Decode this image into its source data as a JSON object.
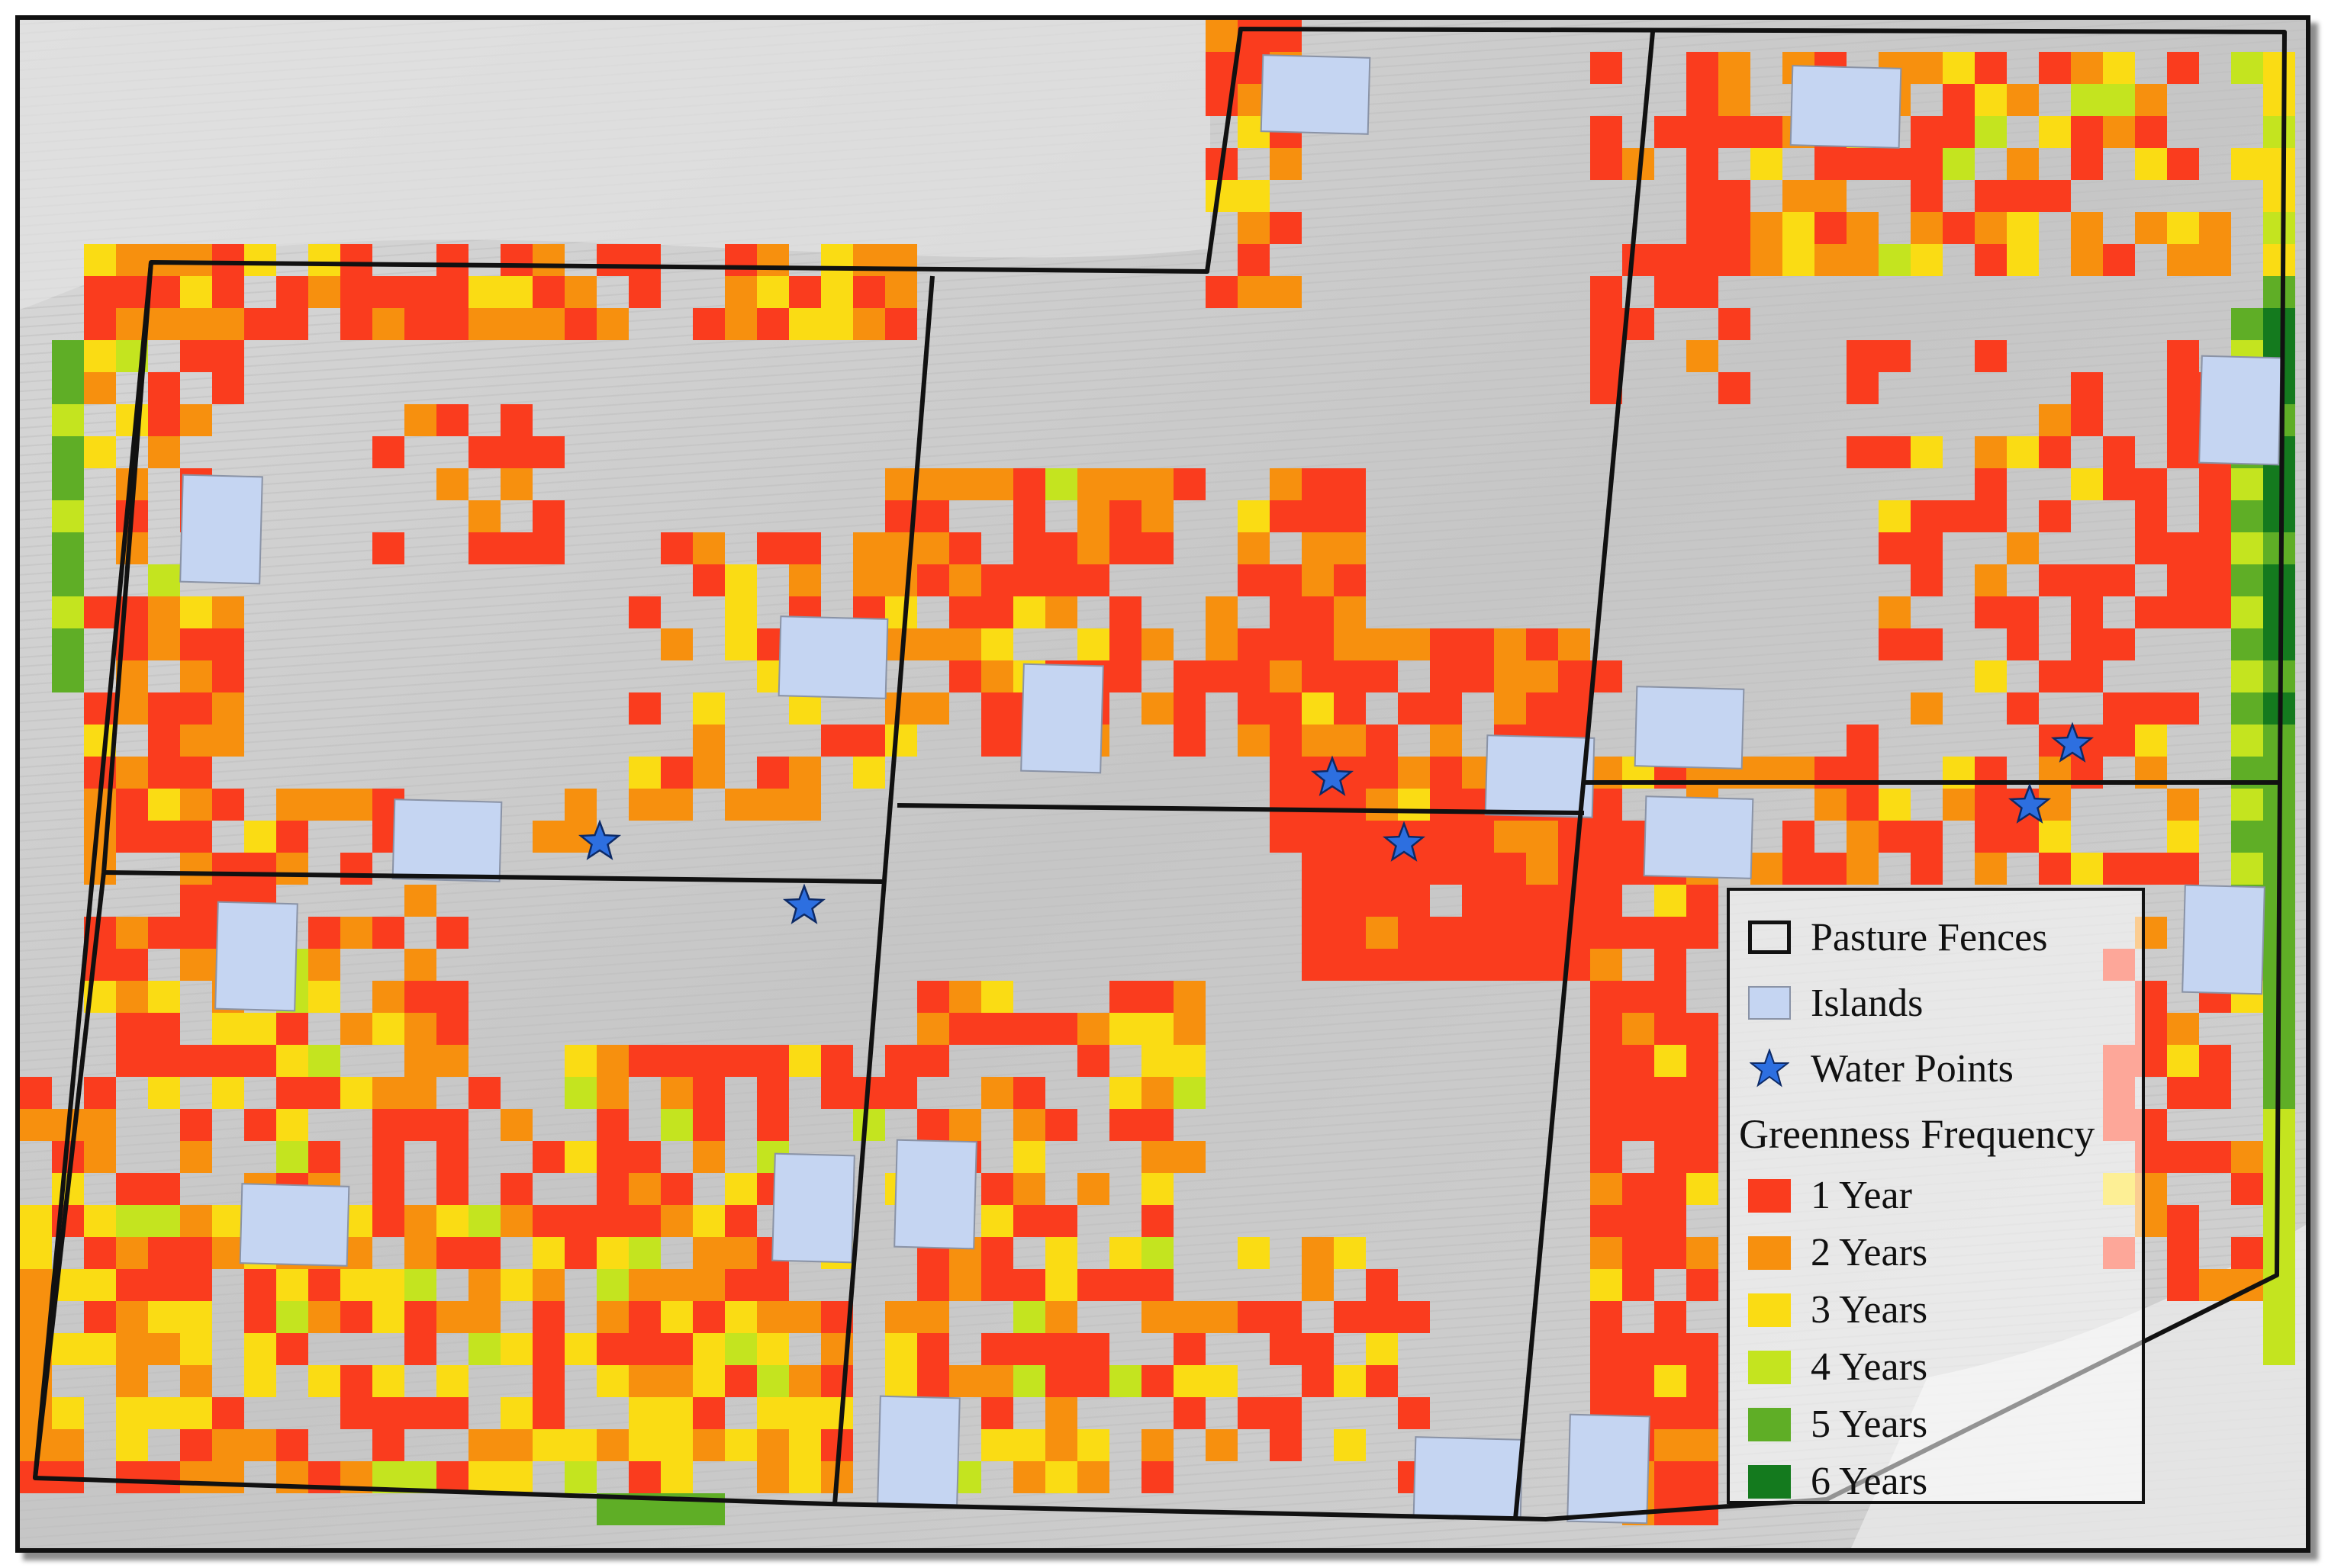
{
  "legend": {
    "fences_label": "Pasture Fences",
    "islands_label": "Islands",
    "water_label": "Water Points",
    "frequency_heading": "Greenness Frequency",
    "classes": [
      {
        "label": "1 Year",
        "color": "#fa3c1e"
      },
      {
        "label": "2 Years",
        "color": "#f7900e"
      },
      {
        "label": "3 Years",
        "color": "#fadc14"
      },
      {
        "label": "4 Years",
        "color": "#c4e41f"
      },
      {
        "label": "5 Years",
        "color": "#5fae26"
      },
      {
        "label": "6 Years",
        "color": "#147a1e"
      }
    ]
  },
  "colors": {
    "fence": "#111111",
    "island_fill": "#c5d5f2",
    "water_point": "#2d6fe0",
    "background": "#cfcfcf"
  }
}
